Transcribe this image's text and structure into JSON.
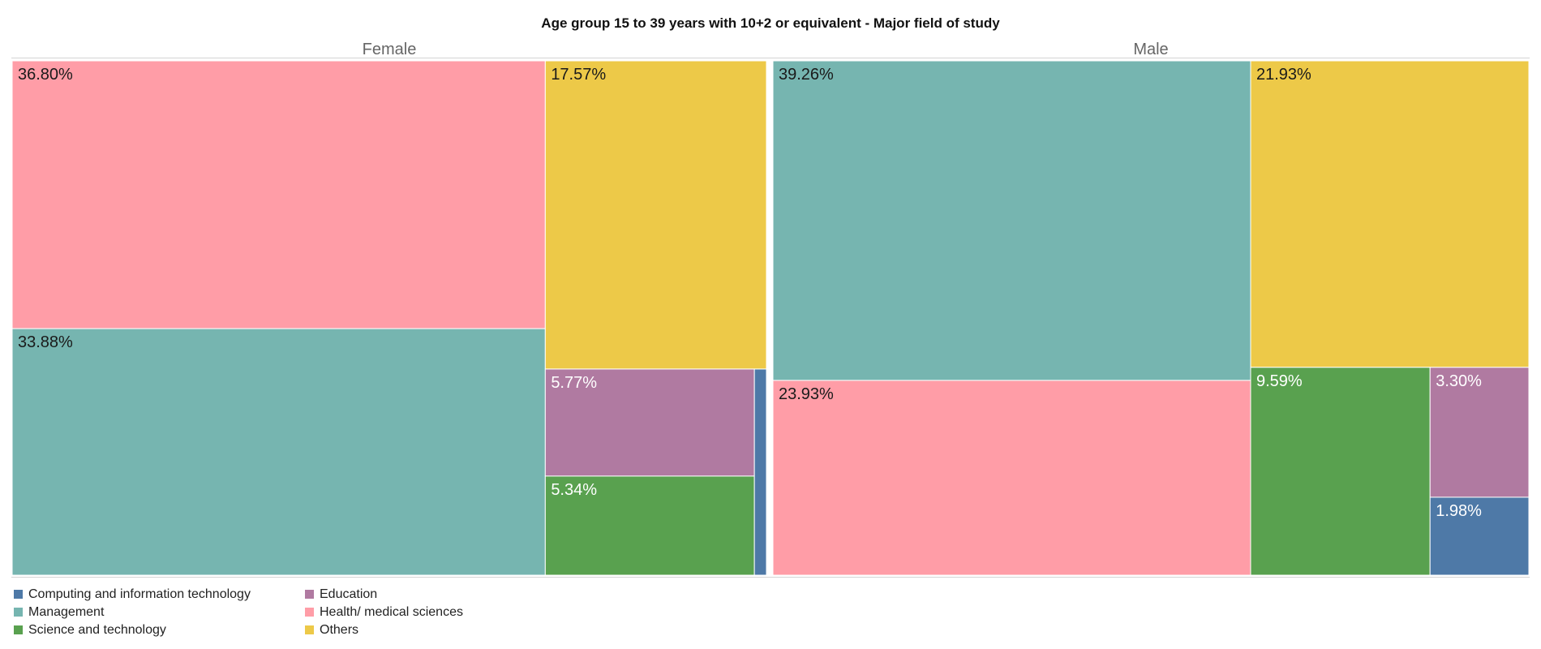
{
  "chart_data": {
    "type": "treemap",
    "title": "Age group 15 to 39 years with 10+2 or equivalent - Major field of study",
    "panels": [
      {
        "name": "Female",
        "cells": [
          {
            "category": "Health/ medical sciences",
            "value": 36.8,
            "label": "36.80%"
          },
          {
            "category": "Management",
            "value": 33.88,
            "label": "33.88%"
          },
          {
            "category": "Others",
            "value": 17.57,
            "label": "17.57%"
          },
          {
            "category": "Education",
            "value": 5.77,
            "label": "5.77%"
          },
          {
            "category": "Science and technology",
            "value": 5.34,
            "label": "5.34%"
          },
          {
            "category": "Computing and information technology",
            "value": 0.64,
            "label": ""
          }
        ]
      },
      {
        "name": "Male",
        "cells": [
          {
            "category": "Management",
            "value": 39.26,
            "label": "39.26%"
          },
          {
            "category": "Health/ medical sciences",
            "value": 23.93,
            "label": "23.93%"
          },
          {
            "category": "Others",
            "value": 21.93,
            "label": "21.93%"
          },
          {
            "category": "Science and technology",
            "value": 9.59,
            "label": "9.59%"
          },
          {
            "category": "Education",
            "value": 3.3,
            "label": "3.30%"
          },
          {
            "category": "Computing and information technology",
            "value": 1.98,
            "label": "1.98%"
          }
        ]
      }
    ],
    "legend": [
      {
        "name": "Computing and information technology",
        "color": "#4e79a7"
      },
      {
        "name": "Management",
        "color": "#76b5b0"
      },
      {
        "name": "Science and technology",
        "color": "#59a14f"
      },
      {
        "name": "Education",
        "color": "#b07aa1"
      },
      {
        "name": "Health/ medical sciences",
        "color": "#ff9da7"
      },
      {
        "name": "Others",
        "color": "#edc948"
      }
    ],
    "legend_placement": "bottom-left",
    "dark_text_categories": [
      "Health/ medical sciences",
      "Management",
      "Others"
    ]
  }
}
